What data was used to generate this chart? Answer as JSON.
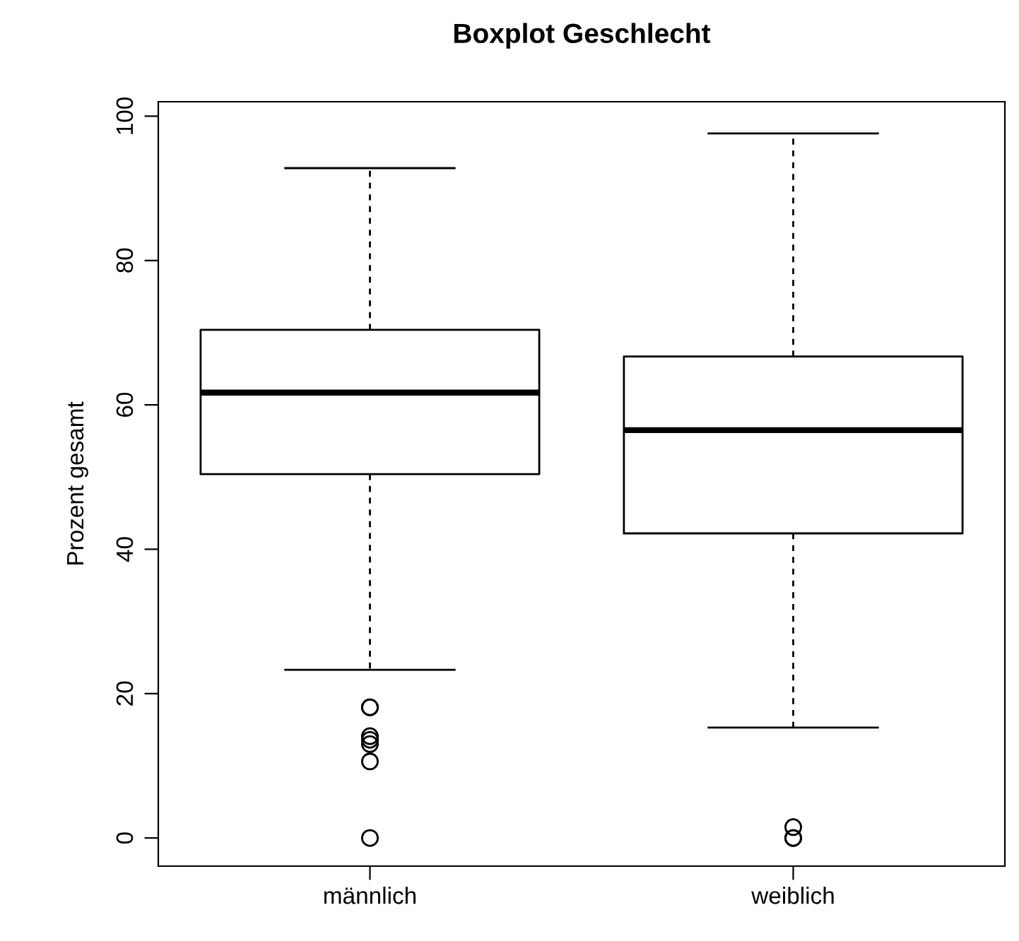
{
  "chart_data": {
    "type": "box",
    "title": "Boxplot Geschlecht",
    "ylabel": "Prozent gesamt",
    "categories": [
      "männlich",
      "weiblich"
    ],
    "boxes": [
      {
        "low": 23.3,
        "q1": 50.4,
        "median": 61.7,
        "q3": 70.4,
        "high": 92.8,
        "outliers": [
          18.1,
          18.1,
          14.1,
          13.6,
          13.0,
          10.6,
          0
        ]
      },
      {
        "low": 15.3,
        "q1": 42.2,
        "median": 56.5,
        "q3": 66.7,
        "high": 97.6,
        "outliers": [
          1.5,
          0,
          0
        ]
      }
    ],
    "ylim": [
      -3.9,
      102
    ],
    "yticks": [
      0,
      20,
      40,
      60,
      80,
      100
    ],
    "grid": false,
    "marker": "circle",
    "color": "#000000"
  }
}
